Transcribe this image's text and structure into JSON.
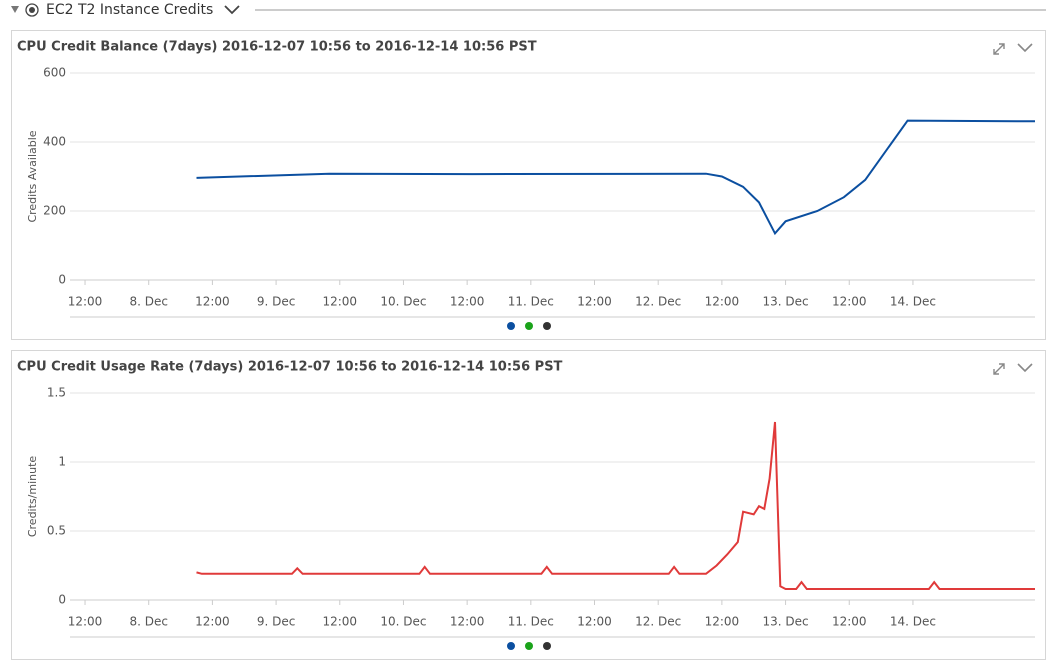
{
  "header": {
    "title": "EC2 T2 Instance Credits"
  },
  "chart_data": [
    {
      "type": "line",
      "title": "CPU Credit Balance (7days) 2016-12-07 10:56 to 2016-12-14 10:56 PST",
      "y_label": "Credits Available",
      "x": [
        "2016-12-08 09:00",
        "2016-12-09 10:00",
        "2016-12-10 13:00",
        "2016-12-12 09:00",
        "2016-12-12 12:00",
        "2016-12-12 16:00",
        "2016-12-12 19:00",
        "2016-12-12 22:00",
        "2016-12-13 00:00",
        "2016-12-13 06:00",
        "2016-12-13 11:00",
        "2016-12-13 15:00",
        "2016-12-13 23:00",
        "2016-12-14 23:00"
      ],
      "series": [
        {
          "color": "#0b4fa0",
          "values": [
            296,
            308,
            307,
            308,
            300,
            270,
            225,
            135,
            170,
            200,
            240,
            290,
            462,
            460
          ]
        }
      ],
      "xlim": [
        "2016-12-07 09:10",
        "2016-12-14 23:00"
      ],
      "ylim": [
        0,
        600
      ],
      "yticks": [
        0,
        200,
        400,
        600
      ],
      "xticks": [
        {
          "value": "2016-12-07 12:00",
          "label": "12:00"
        },
        {
          "value": "2016-12-08 00:00",
          "label": "8. Dec"
        },
        {
          "value": "2016-12-08 12:00",
          "label": "12:00"
        },
        {
          "value": "2016-12-09 00:00",
          "label": "9. Dec"
        },
        {
          "value": "2016-12-09 12:00",
          "label": "12:00"
        },
        {
          "value": "2016-12-10 00:00",
          "label": "10. Dec"
        },
        {
          "value": "2016-12-10 12:00",
          "label": "12:00"
        },
        {
          "value": "2016-12-11 00:00",
          "label": "11. Dec"
        },
        {
          "value": "2016-12-11 12:00",
          "label": "12:00"
        },
        {
          "value": "2016-12-12 00:00",
          "label": "12. Dec"
        },
        {
          "value": "2016-12-12 12:00",
          "label": "12:00"
        },
        {
          "value": "2016-12-13 00:00",
          "label": "13. Dec"
        },
        {
          "value": "2016-12-13 12:00",
          "label": "12:00"
        },
        {
          "value": "2016-12-14 00:00",
          "label": "14. Dec"
        }
      ],
      "grid": true
    },
    {
      "type": "line",
      "title": "CPU Credit Usage Rate (7days) 2016-12-07 10:56 to 2016-12-14 10:56 PST",
      "y_label": "Credits/minute",
      "x": [
        "2016-12-08 09:00",
        "2016-12-08 10:00",
        "2016-12-09 03:00",
        "2016-12-09 04:00",
        "2016-12-09 05:00",
        "2016-12-10 03:00",
        "2016-12-10 04:00",
        "2016-12-10 05:00",
        "2016-12-11 02:00",
        "2016-12-11 03:00",
        "2016-12-11 04:00",
        "2016-12-12 02:00",
        "2016-12-12 03:00",
        "2016-12-12 04:00",
        "2016-12-12 09:00",
        "2016-12-12 11:00",
        "2016-12-12 13:00",
        "2016-12-12 15:00",
        "2016-12-12 16:00",
        "2016-12-12 18:00",
        "2016-12-12 19:00",
        "2016-12-12 20:00",
        "2016-12-12 21:00",
        "2016-12-12 22:00",
        "2016-12-12 23:00",
        "2016-12-13 00:00",
        "2016-12-13 02:00",
        "2016-12-13 03:00",
        "2016-12-13 04:00",
        "2016-12-14 03:00",
        "2016-12-14 04:00",
        "2016-12-14 05:00",
        "2016-12-14 23:00"
      ],
      "series": [
        {
          "color": "#e03a3a",
          "values": [
            0.2,
            0.19,
            0.19,
            0.23,
            0.19,
            0.19,
            0.24,
            0.19,
            0.19,
            0.24,
            0.19,
            0.19,
            0.24,
            0.19,
            0.19,
            0.25,
            0.33,
            0.42,
            0.64,
            0.62,
            0.68,
            0.66,
            0.88,
            1.29,
            0.1,
            0.08,
            0.08,
            0.13,
            0.08,
            0.08,
            0.13,
            0.08,
            0.08
          ]
        }
      ],
      "xlim": [
        "2016-12-07 09:10",
        "2016-12-14 23:00"
      ],
      "ylim": [
        0,
        1.5
      ],
      "yticks": [
        0,
        0.5,
        1,
        1.5
      ],
      "xticks": [
        {
          "value": "2016-12-07 12:00",
          "label": "12:00"
        },
        {
          "value": "2016-12-08 00:00",
          "label": "8. Dec"
        },
        {
          "value": "2016-12-08 12:00",
          "label": "12:00"
        },
        {
          "value": "2016-12-09 00:00",
          "label": "9. Dec"
        },
        {
          "value": "2016-12-09 12:00",
          "label": "12:00"
        },
        {
          "value": "2016-12-10 00:00",
          "label": "10. Dec"
        },
        {
          "value": "2016-12-10 12:00",
          "label": "12:00"
        },
        {
          "value": "2016-12-11 00:00",
          "label": "11. Dec"
        },
        {
          "value": "2016-12-11 12:00",
          "label": "12:00"
        },
        {
          "value": "2016-12-12 00:00",
          "label": "12. Dec"
        },
        {
          "value": "2016-12-12 12:00",
          "label": "12:00"
        },
        {
          "value": "2016-12-13 00:00",
          "label": "13. Dec"
        },
        {
          "value": "2016-12-13 12:00",
          "label": "12:00"
        },
        {
          "value": "2016-12-14 00:00",
          "label": "14. Dec"
        }
      ],
      "grid": true
    }
  ]
}
